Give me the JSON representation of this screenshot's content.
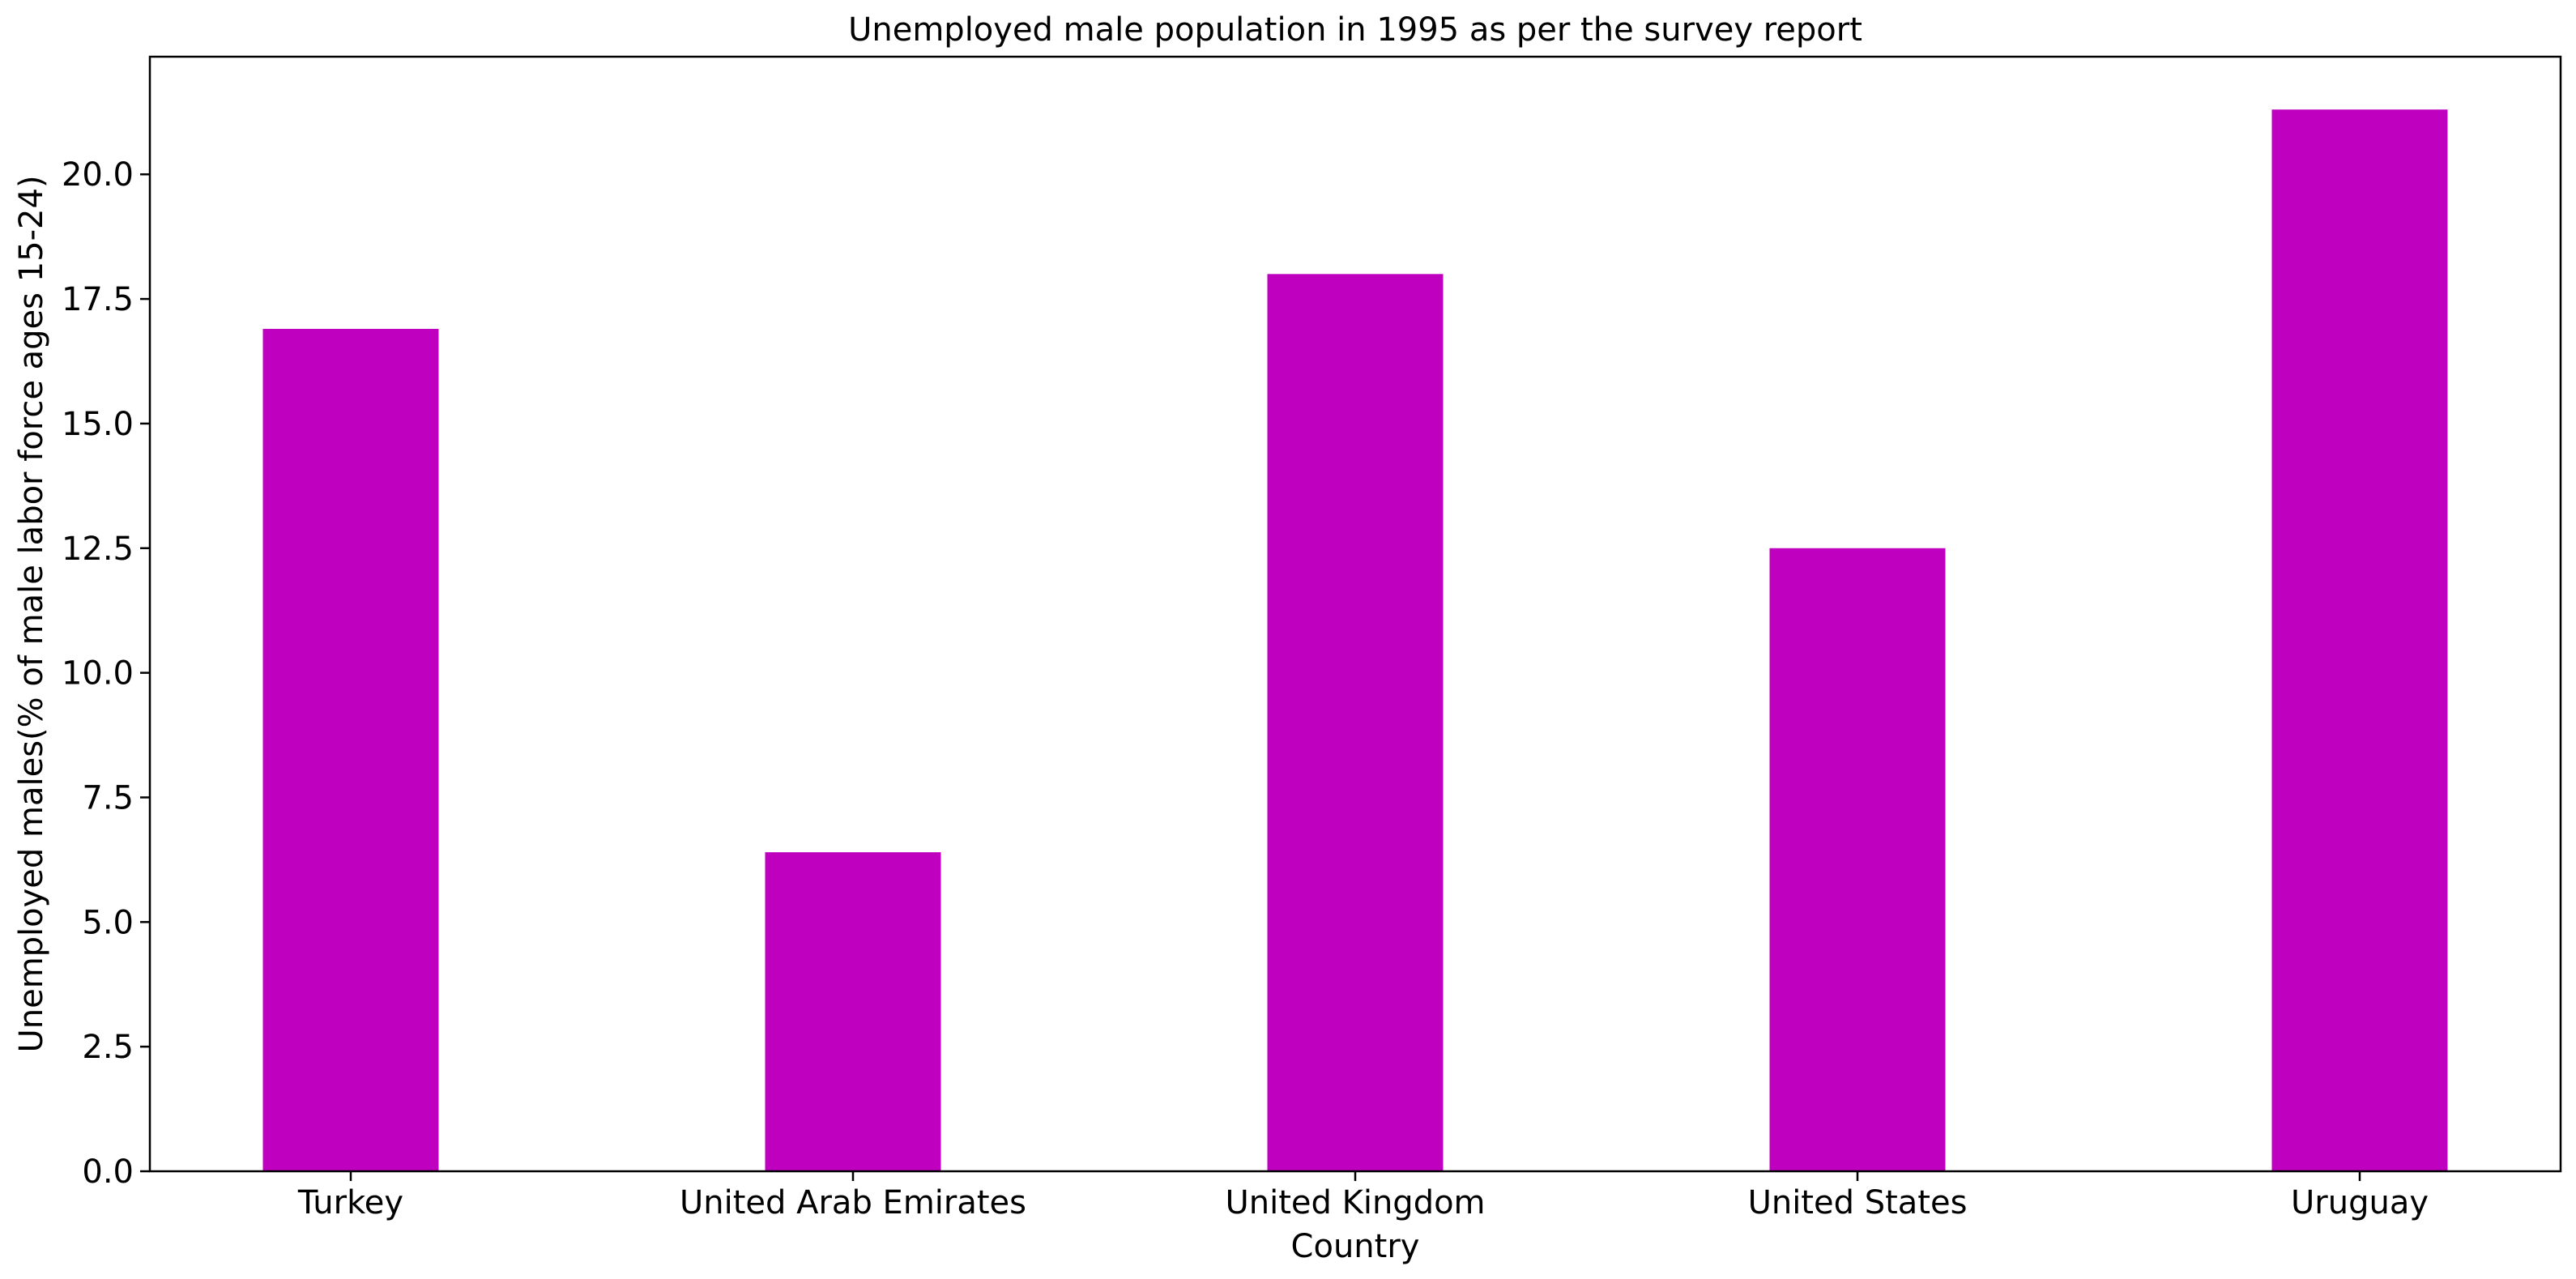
{
  "chart_data": {
    "type": "bar",
    "title": "Unemployed male population in 1995 as per the survey report",
    "xlabel": "Country",
    "ylabel": "Unemployed males(% of male labor force ages 15-24)",
    "categories": [
      "Turkey",
      "United Arab Emirates",
      "United Kingdom",
      "United States",
      "Uruguay"
    ],
    "values": [
      16.9,
      6.4,
      18.0,
      12.5,
      21.3
    ],
    "ylim": [
      0,
      22.36
    ],
    "yticks": [
      0.0,
      2.5,
      5.0,
      7.5,
      10.0,
      12.5,
      15.0,
      17.5,
      20.0
    ],
    "ytick_labels": [
      "0.0",
      "2.5",
      "5.0",
      "7.5",
      "10.0",
      "12.5",
      "15.0",
      "17.5",
      "20.0"
    ],
    "bar_color": "#bf00bf",
    "grid": false,
    "legend": "none"
  }
}
